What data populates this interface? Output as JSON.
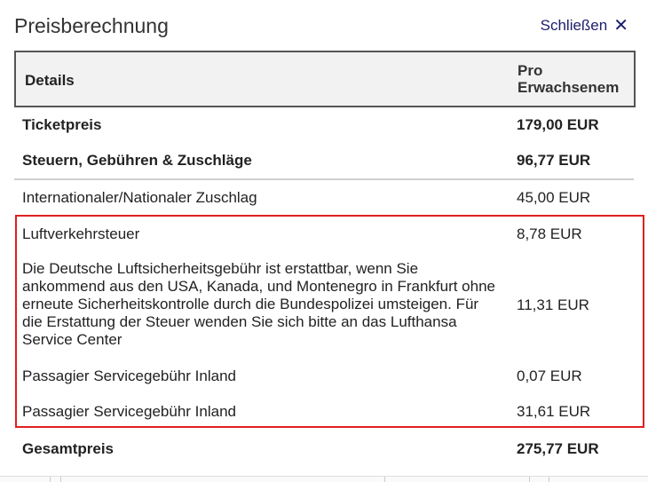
{
  "dialog": {
    "title": "Preisberechnung",
    "close_label": "Schließen",
    "close_icon": "✕"
  },
  "table": {
    "header": {
      "details": "Details",
      "per_adult": "Pro Erwachsenem"
    },
    "rows": [
      {
        "label": "Ticketpreis",
        "value": "179,00 EUR",
        "bold": true
      },
      {
        "label": "Steuern, Gebühren & Zuschläge",
        "value": "96,77 EUR",
        "bold": true
      },
      {
        "label": "Internationaler/Nationaler Zuschlag",
        "value": "45,00 EUR"
      },
      {
        "label": "Luftverkehrsteuer",
        "value": "8,78 EUR"
      },
      {
        "label": "Die Deutsche Luftsicherheitsgebühr ist erstattbar, wenn Sie ankommend aus den USA, Kanada, und Montenegro in Frankfurt ohne erneute Sicherheitskontrolle durch die Bundespolizei umsteigen. Für die Erstattung der Steuer wenden Sie sich bitte an das Lufthansa Service Center",
        "value": "11,31 EUR"
      },
      {
        "label": "Passagier Servicegebühr Inland",
        "value": "0,07 EUR"
      },
      {
        "label": "Passagier Servicegebühr Inland",
        "value": "31,61 EUR"
      },
      {
        "label": "Gesamtpreis",
        "value": "275,77 EUR",
        "bold": true
      }
    ]
  },
  "colors": {
    "highlight_border": "#e02020",
    "link": "#1d1d6b"
  }
}
